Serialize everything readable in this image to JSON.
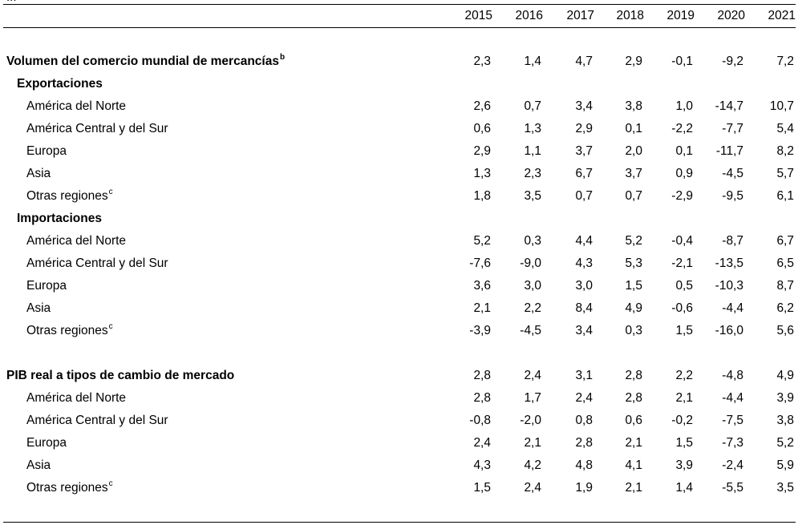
{
  "years": [
    "2015",
    "2016",
    "2017",
    "2018",
    "2019",
    "2020",
    "2021"
  ],
  "top_fragment": "...",
  "rows": {
    "trade_volume": {
      "label": "Volumen del comercio mundial de mercancías",
      "note": "b",
      "values": [
        "2,3",
        "1,4",
        "4,7",
        "2,9",
        "-0,1",
        "-9,2",
        "7,2"
      ]
    },
    "exports": {
      "label": "Exportaciones"
    },
    "exp_north_america": {
      "label": "América del Norte",
      "values": [
        "2,6",
        "0,7",
        "3,4",
        "3,8",
        "1,0",
        "-14,7",
        "10,7"
      ]
    },
    "exp_central_south_america": {
      "label": "América Central y del Sur",
      "values": [
        "0,6",
        "1,3",
        "2,9",
        "0,1",
        "-2,2",
        "-7,7",
        "5,4"
      ]
    },
    "exp_europe": {
      "label": "Europa",
      "values": [
        "2,9",
        "1,1",
        "3,7",
        "2,0",
        "0,1",
        "-11,7",
        "8,2"
      ]
    },
    "exp_asia": {
      "label": "Asia",
      "values": [
        "1,3",
        "2,3",
        "6,7",
        "3,7",
        "0,9",
        "-4,5",
        "5,7"
      ]
    },
    "exp_other": {
      "label": "Otras regiones",
      "note": "c",
      "values": [
        "1,8",
        "3,5",
        "0,7",
        "0,7",
        "-2,9",
        "-9,5",
        "6,1"
      ]
    },
    "imports": {
      "label": "Importaciones"
    },
    "imp_north_america": {
      "label": "América del Norte",
      "values": [
        "5,2",
        "0,3",
        "4,4",
        "5,2",
        "-0,4",
        "-8,7",
        "6,7"
      ]
    },
    "imp_central_south_america": {
      "label": "América Central y del Sur",
      "values": [
        "-7,6",
        "-9,0",
        "4,3",
        "5,3",
        "-2,1",
        "-13,5",
        "6,5"
      ]
    },
    "imp_europe": {
      "label": "Europa",
      "values": [
        "3,6",
        "3,0",
        "3,0",
        "1,5",
        "0,5",
        "-10,3",
        "8,7"
      ]
    },
    "imp_asia": {
      "label": "Asia",
      "values": [
        "2,1",
        "2,2",
        "8,4",
        "4,9",
        "-0,6",
        "-4,4",
        "6,2"
      ]
    },
    "imp_other": {
      "label": "Otras regiones",
      "note": "c",
      "values": [
        "-3,9",
        "-4,5",
        "3,4",
        "0,3",
        "1,5",
        "-16,0",
        "5,6"
      ]
    },
    "gdp": {
      "label": "PIB real a tipos de cambio de mercado",
      "values": [
        "2,8",
        "2,4",
        "3,1",
        "2,8",
        "2,2",
        "-4,8",
        "4,9"
      ]
    },
    "gdp_north_america": {
      "label": "América del Norte",
      "values": [
        "2,8",
        "1,7",
        "2,4",
        "2,8",
        "2,1",
        "-4,4",
        "3,9"
      ]
    },
    "gdp_central_south_america": {
      "label": "América Central y del Sur",
      "values": [
        "-0,8",
        "-2,0",
        "0,8",
        "0,6",
        "-0,2",
        "-7,5",
        "3,8"
      ]
    },
    "gdp_europe": {
      "label": "Europa",
      "values": [
        "2,4",
        "2,1",
        "2,8",
        "2,1",
        "1,5",
        "-7,3",
        "5,2"
      ]
    },
    "gdp_asia": {
      "label": "Asia",
      "values": [
        "4,3",
        "4,2",
        "4,8",
        "4,1",
        "3,9",
        "-2,4",
        "5,9"
      ]
    },
    "gdp_other": {
      "label": "Otras regiones",
      "note": "c",
      "values": [
        "1,5",
        "2,4",
        "1,9",
        "2,1",
        "1,4",
        "-5,5",
        "3,5"
      ]
    }
  }
}
